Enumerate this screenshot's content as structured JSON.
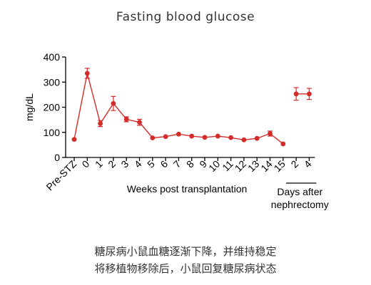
{
  "header": {
    "title": "Fasting blood glucose"
  },
  "caption": {
    "line1": "糖尿病小鼠血糖逐渐下降，并维持稳定",
    "line2": "将移植物移除后，小鼠回复糖尿病状态"
  },
  "chart_data": {
    "type": "line",
    "xlabel": "Weeks post transplantation",
    "xlabel2": [
      "Days after",
      "nephrectomy"
    ],
    "ylabel": "mg/dL",
    "ylim": [
      0,
      400
    ],
    "yticks": [
      "0",
      "100",
      "200",
      "300",
      "400"
    ],
    "categories": [
      "Pre-STZ",
      "0",
      "1",
      "2",
      "3",
      "4",
      "5",
      "6",
      "7",
      "8",
      "9",
      "10",
      "11",
      "12",
      "13",
      "14",
      "15",
      "2",
      "4"
    ],
    "values": [
      72,
      335,
      135,
      215,
      152,
      140,
      78,
      83,
      93,
      85,
      80,
      85,
      79,
      70,
      76,
      95,
      54,
      253,
      253
    ],
    "errors": [
      0,
      20,
      12,
      28,
      10,
      12,
      0,
      0,
      0,
      0,
      0,
      0,
      0,
      0,
      0,
      10,
      0,
      25,
      22
    ],
    "gap_after_index": 16,
    "color": "#d42b2b",
    "grid": false
  }
}
